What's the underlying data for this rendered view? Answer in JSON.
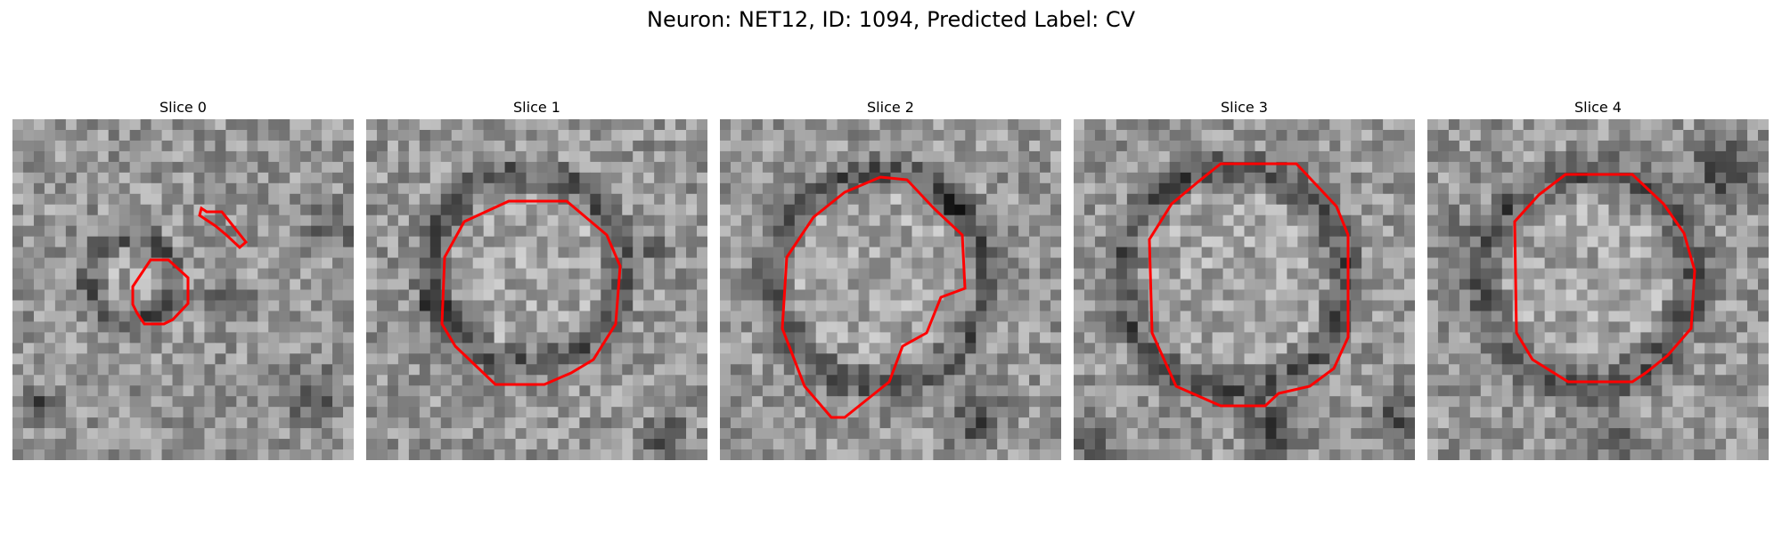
{
  "figure": {
    "title": "Neuron: NET12, ID: 1094, Predicted Label: CV"
  },
  "panels": [
    {
      "title": "Slice 0"
    },
    {
      "title": "Slice 1"
    },
    {
      "title": "Slice 2"
    },
    {
      "title": "Slice 3"
    },
    {
      "title": "Slice 4"
    }
  ],
  "colors": {
    "contour": "#ff0000"
  }
}
